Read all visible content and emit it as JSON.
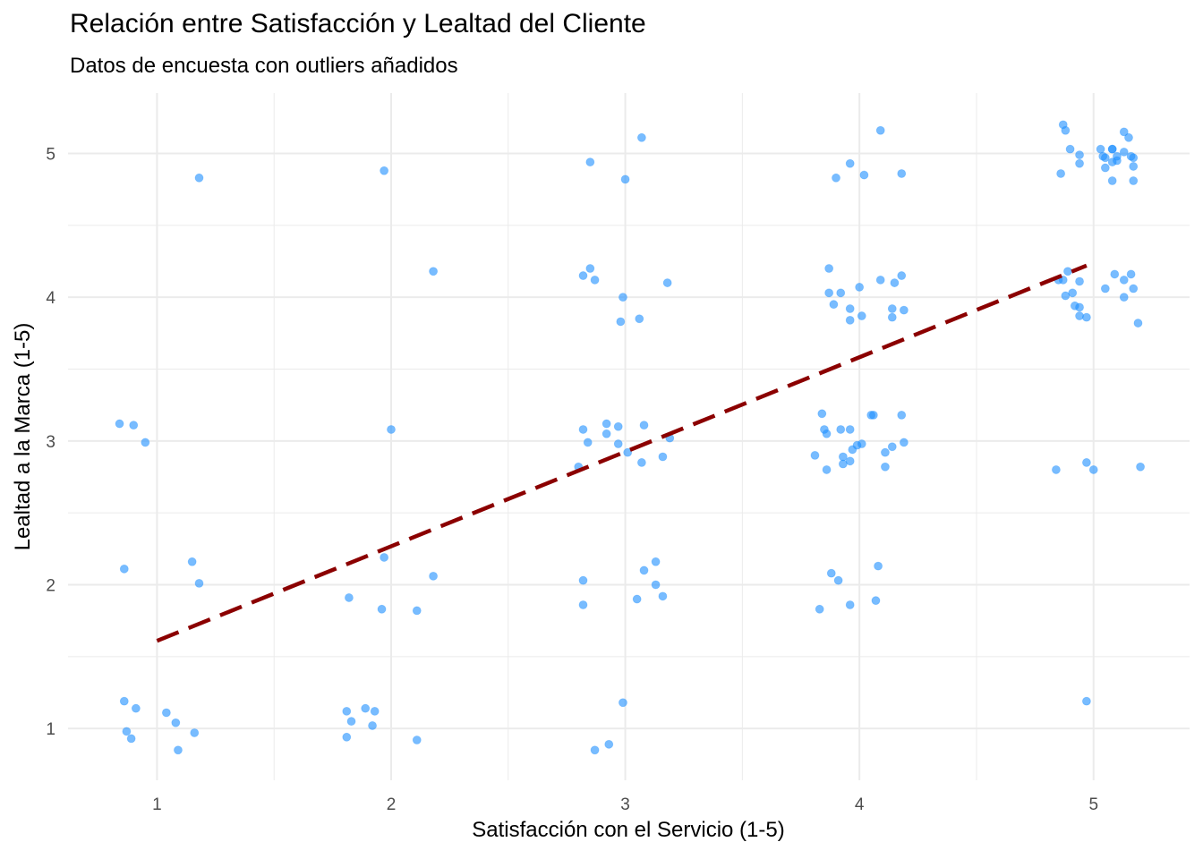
{
  "chart_data": {
    "type": "scatter",
    "title": "Relación entre Satisfacción y Lealtad del Cliente",
    "subtitle": "Datos de encuesta con outliers añadidos",
    "xlabel": "Satisfacción con el Servicio (1-5)",
    "ylabel": "Lealtad a la Marca (1-5)",
    "xlim": [
      0.62,
      5.41
    ],
    "ylim": [
      0.64,
      5.42
    ],
    "x_ticks": [
      1,
      2,
      3,
      4,
      5
    ],
    "y_ticks": [
      1,
      2,
      3,
      4,
      5
    ],
    "x_tick_labels": [
      "1",
      "2",
      "3",
      "4",
      "5"
    ],
    "y_tick_labels": [
      "1",
      "2",
      "3",
      "4",
      "5"
    ],
    "grid": true,
    "legend": "none",
    "point_color": "#1E90FF",
    "point_opacity": 0.6,
    "trend_color": "#8B0000",
    "trend_line": {
      "style": "dashed",
      "x": [
        1,
        4.97
      ],
      "y": [
        1.61,
        4.22
      ]
    },
    "points": [
      [
        0.84,
        3.12
      ],
      [
        0.9,
        3.11
      ],
      [
        0.95,
        2.99
      ],
      [
        1.18,
        4.83
      ],
      [
        0.86,
        2.11
      ],
      [
        1.15,
        2.16
      ],
      [
        1.18,
        2.01
      ],
      [
        0.86,
        1.19
      ],
      [
        0.91,
        1.14
      ],
      [
        0.87,
        0.98
      ],
      [
        0.89,
        0.93
      ],
      [
        1.04,
        1.11
      ],
      [
        1.08,
        1.04
      ],
      [
        1.16,
        0.97
      ],
      [
        1.09,
        0.85
      ],
      [
        1.97,
        4.88
      ],
      [
        2.18,
        4.18
      ],
      [
        2.0,
        3.08
      ],
      [
        1.97,
        2.19
      ],
      [
        2.18,
        2.06
      ],
      [
        1.82,
        1.91
      ],
      [
        1.96,
        1.83
      ],
      [
        2.11,
        1.82
      ],
      [
        1.81,
        1.12
      ],
      [
        1.89,
        1.14
      ],
      [
        1.93,
        1.12
      ],
      [
        1.83,
        1.05
      ],
      [
        1.92,
        1.02
      ],
      [
        1.81,
        0.94
      ],
      [
        2.11,
        0.92
      ],
      [
        3.07,
        5.11
      ],
      [
        2.85,
        4.94
      ],
      [
        3.0,
        4.82
      ],
      [
        2.85,
        4.2
      ],
      [
        2.82,
        4.15
      ],
      [
        2.87,
        4.12
      ],
      [
        3.18,
        4.1
      ],
      [
        2.99,
        4.0
      ],
      [
        3.06,
        3.85
      ],
      [
        2.98,
        3.83
      ],
      [
        2.82,
        3.08
      ],
      [
        2.92,
        3.05
      ],
      [
        2.84,
        2.99
      ],
      [
        2.92,
        3.12
      ],
      [
        2.97,
        3.1
      ],
      [
        2.97,
        2.98
      ],
      [
        3.08,
        3.11
      ],
      [
        3.01,
        2.92
      ],
      [
        2.8,
        2.82
      ],
      [
        3.07,
        2.85
      ],
      [
        3.16,
        2.89
      ],
      [
        3.19,
        3.02
      ],
      [
        2.82,
        2.03
      ],
      [
        2.82,
        1.86
      ],
      [
        3.08,
        2.1
      ],
      [
        3.05,
        1.9
      ],
      [
        3.13,
        2.16
      ],
      [
        3.13,
        2.0
      ],
      [
        3.16,
        1.92
      ],
      [
        2.99,
        1.18
      ],
      [
        2.93,
        0.89
      ],
      [
        2.87,
        0.85
      ],
      [
        4.09,
        5.16
      ],
      [
        3.96,
        4.93
      ],
      [
        3.9,
        4.83
      ],
      [
        4.02,
        4.85
      ],
      [
        4.18,
        4.86
      ],
      [
        3.87,
        4.2
      ],
      [
        3.87,
        4.03
      ],
      [
        3.92,
        4.03
      ],
      [
        4.0,
        4.07
      ],
      [
        4.09,
        4.12
      ],
      [
        4.15,
        4.1
      ],
      [
        4.18,
        4.15
      ],
      [
        3.89,
        3.95
      ],
      [
        3.96,
        3.92
      ],
      [
        4.01,
        3.87
      ],
      [
        3.96,
        3.84
      ],
      [
        4.14,
        3.92
      ],
      [
        4.14,
        3.86
      ],
      [
        4.19,
        3.91
      ],
      [
        3.84,
        3.19
      ],
      [
        3.85,
        3.08
      ],
      [
        3.86,
        3.05
      ],
      [
        3.92,
        3.08
      ],
      [
        3.96,
        3.08
      ],
      [
        3.81,
        2.9
      ],
      [
        3.86,
        2.8
      ],
      [
        3.93,
        2.89
      ],
      [
        3.93,
        2.84
      ],
      [
        3.96,
        2.86
      ],
      [
        3.97,
        2.94
      ],
      [
        3.99,
        2.97
      ],
      [
        4.01,
        2.98
      ],
      [
        4.05,
        3.18
      ],
      [
        4.06,
        3.18
      ],
      [
        4.18,
        3.18
      ],
      [
        4.11,
        2.92
      ],
      [
        4.14,
        2.96
      ],
      [
        4.19,
        2.99
      ],
      [
        4.11,
        2.82
      ],
      [
        3.88,
        2.08
      ],
      [
        3.91,
        2.03
      ],
      [
        4.08,
        2.13
      ],
      [
        3.83,
        1.83
      ],
      [
        3.96,
        1.86
      ],
      [
        4.07,
        1.89
      ],
      [
        4.87,
        5.2
      ],
      [
        4.88,
        5.16
      ],
      [
        4.9,
        5.03
      ],
      [
        4.94,
        4.99
      ],
      [
        4.94,
        4.93
      ],
      [
        4.86,
        4.86
      ],
      [
        5.03,
        5.03
      ],
      [
        5.04,
        4.98
      ],
      [
        5.05,
        4.97
      ],
      [
        5.08,
        5.03
      ],
      [
        5.08,
        5.03
      ],
      [
        5.05,
        4.9
      ],
      [
        5.1,
        4.98
      ],
      [
        5.1,
        4.95
      ],
      [
        5.08,
        4.94
      ],
      [
        5.13,
        5.15
      ],
      [
        5.15,
        5.11
      ],
      [
        5.13,
        5.01
      ],
      [
        5.16,
        4.98
      ],
      [
        5.17,
        4.97
      ],
      [
        5.17,
        4.91
      ],
      [
        5.08,
        4.81
      ],
      [
        5.17,
        4.81
      ],
      [
        4.89,
        4.18
      ],
      [
        4.85,
        4.12
      ],
      [
        4.87,
        4.12
      ],
      [
        4.94,
        4.11
      ],
      [
        4.88,
        4.01
      ],
      [
        4.91,
        4.03
      ],
      [
        4.92,
        3.94
      ],
      [
        4.94,
        3.93
      ],
      [
        4.94,
        3.87
      ],
      [
        4.97,
        3.86
      ],
      [
        5.05,
        4.06
      ],
      [
        5.09,
        4.16
      ],
      [
        5.13,
        4.12
      ],
      [
        5.16,
        4.16
      ],
      [
        5.17,
        4.06
      ],
      [
        5.13,
        4.0
      ],
      [
        5.19,
        3.82
      ],
      [
        4.84,
        2.8
      ],
      [
        4.97,
        2.85
      ],
      [
        5.0,
        2.8
      ],
      [
        5.2,
        2.82
      ],
      [
        4.97,
        1.19
      ]
    ]
  }
}
